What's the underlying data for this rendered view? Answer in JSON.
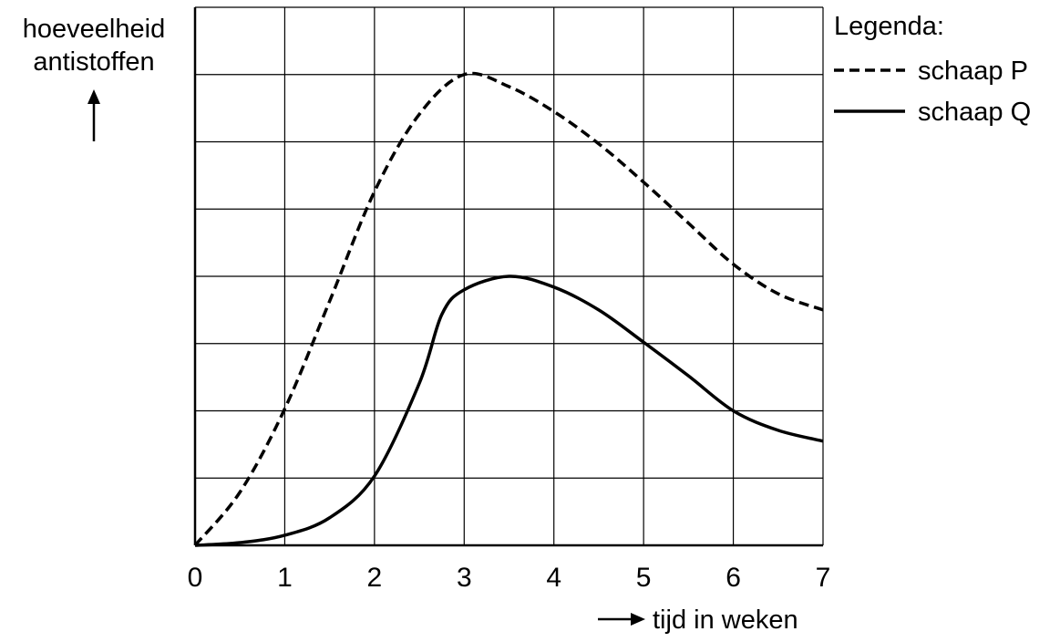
{
  "chart_data": {
    "type": "line",
    "ylabel": "hoeveelheid antistoffen",
    "xlabel": "tijd in weken",
    "legend_title": "Legenda:",
    "legend": "top-right",
    "xlim": [
      0,
      7
    ],
    "xticks": [
      0,
      1,
      2,
      3,
      4,
      5,
      6,
      7
    ],
    "ylim": [
      0,
      8
    ],
    "yticks": [
      0,
      1,
      2,
      3,
      4,
      5,
      6,
      7,
      8
    ],
    "ytick_labels_shown": false,
    "grid": true,
    "series": [
      {
        "name": "schaap P",
        "color": "#000000",
        "dash": true,
        "x": [
          0,
          0.5,
          1,
          1.5,
          2,
          2.5,
          3,
          3.5,
          4,
          4.5,
          5,
          5.5,
          6,
          6.5,
          7
        ],
        "values": [
          0,
          0.79,
          2.03,
          3.63,
          5.26,
          6.41,
          7.0,
          6.82,
          6.45,
          5.97,
          5.4,
          4.79,
          4.18,
          3.74,
          3.5
        ]
      },
      {
        "name": "schaap Q",
        "color": "#000000",
        "dash": false,
        "x": [
          0,
          0.5,
          1,
          1.5,
          2,
          2.5,
          2.75,
          3,
          3.5,
          4,
          4.5,
          5,
          5.5,
          6,
          6.5,
          7
        ],
        "values": [
          0,
          0.04,
          0.15,
          0.41,
          1.03,
          2.41,
          3.43,
          3.8,
          4.0,
          3.84,
          3.5,
          3.02,
          2.52,
          2.0,
          1.71,
          1.55
        ]
      }
    ]
  }
}
